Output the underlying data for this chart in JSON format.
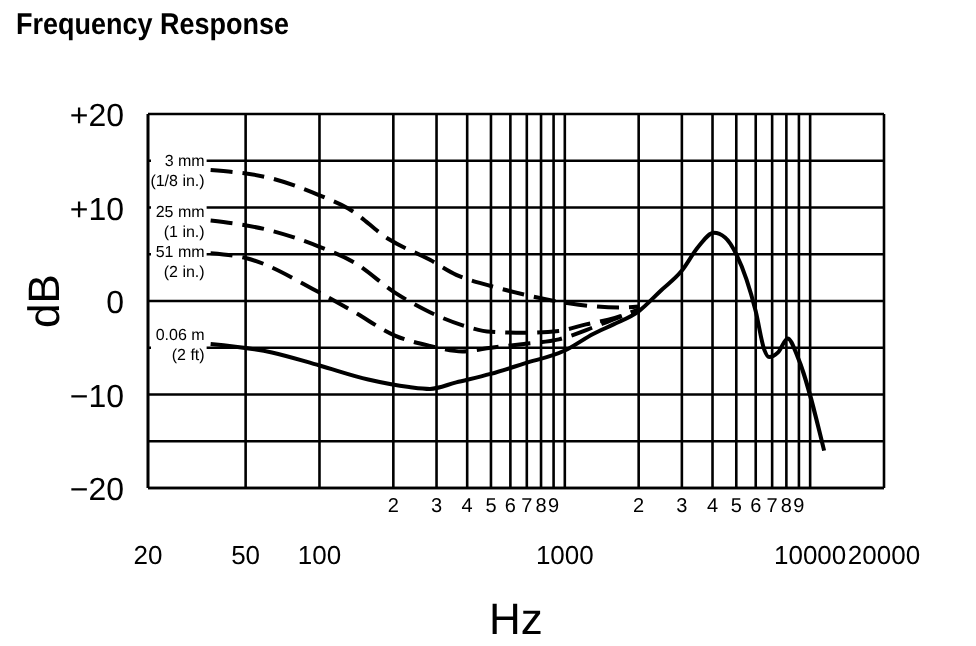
{
  "chart_data": {
    "type": "line",
    "title": "Frequency Response",
    "xlabel": "Hz",
    "ylabel": "dB",
    "log": "x",
    "grid": true,
    "legend": false,
    "marker": "none",
    "xlim": [
      20,
      20000
    ],
    "ylim": [
      -20,
      20
    ],
    "xticks": [
      20,
      50,
      100,
      {
        "value": 200,
        "label": null
      },
      {
        "value": 300,
        "label": null
      },
      {
        "value": 400,
        "label": null
      },
      {
        "value": 500,
        "label": null
      },
      {
        "value": 600,
        "label": null
      },
      {
        "value": 700,
        "label": null
      },
      {
        "value": 800,
        "label": null
      },
      {
        "value": 900,
        "label": null
      },
      1000,
      {
        "value": 2000,
        "label": null
      },
      {
        "value": 3000,
        "label": null
      },
      {
        "value": 4000,
        "label": null
      },
      {
        "value": 5000,
        "label": null
      },
      {
        "value": 6000,
        "label": null
      },
      {
        "value": 7000,
        "label": null
      },
      {
        "value": 8000,
        "label": null
      },
      {
        "value": 9000,
        "label": null
      },
      10000,
      20000
    ],
    "yticks": [
      {
        "value": -20,
        "label": "−20"
      },
      {
        "value": -15,
        "label": null
      },
      {
        "value": -10,
        "label": "−10"
      },
      {
        "value": -5,
        "label": null
      },
      0,
      {
        "value": 5,
        "label": null
      },
      {
        "value": 10,
        "label": "+10"
      },
      {
        "value": 15,
        "label": null
      },
      {
        "value": 20,
        "label": "+20"
      }
    ],
    "annotations": [
      "2",
      "3",
      "4",
      "5",
      "6",
      "7",
      "8",
      "9",
      "2",
      "3",
      "4",
      "5",
      "6",
      "7",
      "8",
      "9"
    ],
    "series": [
      {
        "name": "3 mm (1/8 in.)",
        "color": "#000000",
        "line_style": "dashed",
        "x": [
          36,
          64,
          100,
          131,
          192,
          282,
          361,
          500,
          681,
          1140,
          1680,
          2000
        ],
        "values": [
          14.0,
          13.1,
          11.3,
          9.9,
          6.6,
          4.4,
          2.8,
          1.6,
          0.7,
          -0.4,
          -0.7,
          -0.6
        ]
      },
      {
        "name": "25 mm (1 in.)",
        "color": "#000000",
        "line_style": "dashed",
        "x": [
          36,
          64,
          100,
          139,
          203,
          282,
          383,
          500,
          681,
          945,
          1220,
          1600,
          2000
        ],
        "values": [
          8.6,
          7.5,
          5.8,
          4.1,
          0.9,
          -1.2,
          -2.6,
          -3.3,
          -3.4,
          -3.2,
          -2.5,
          -1.8,
          -0.9
        ]
      },
      {
        "name": "51 mm (2 in.)",
        "color": "#000000",
        "line_style": "dashed",
        "x": [
          36,
          50,
          100,
          139,
          203,
          282,
          383,
          500,
          681,
          945,
          1310,
          1600,
          2000
        ],
        "values": [
          5.1,
          4.6,
          0.9,
          -1.2,
          -3.7,
          -4.8,
          -5.4,
          -5.0,
          -4.6,
          -4.1,
          -2.8,
          -1.9,
          -1.0
        ]
      },
      {
        "name": "0.06 m (2 ft)",
        "color": "#000000",
        "line_style": "solid",
        "x": [
          36,
          64,
          100,
          158,
          232,
          282,
          361,
          498,
          681,
          1000,
          1310,
          1580,
          2000,
          2460,
          2990,
          3500,
          4050,
          4500,
          5000,
          6000,
          6500,
          6800,
          7400,
          8100,
          8900,
          11400
        ],
        "values": [
          -4.6,
          -5.5,
          -6.9,
          -8.4,
          -9.2,
          -9.4,
          -8.7,
          -7.8,
          -6.7,
          -5.3,
          -3.5,
          -2.5,
          -1.1,
          1.1,
          3.2,
          5.8,
          7.3,
          6.8,
          5.0,
          -1.1,
          -5.2,
          -6.0,
          -5.5,
          -4.0,
          -6.0,
          -16.0
        ]
      }
    ]
  }
}
